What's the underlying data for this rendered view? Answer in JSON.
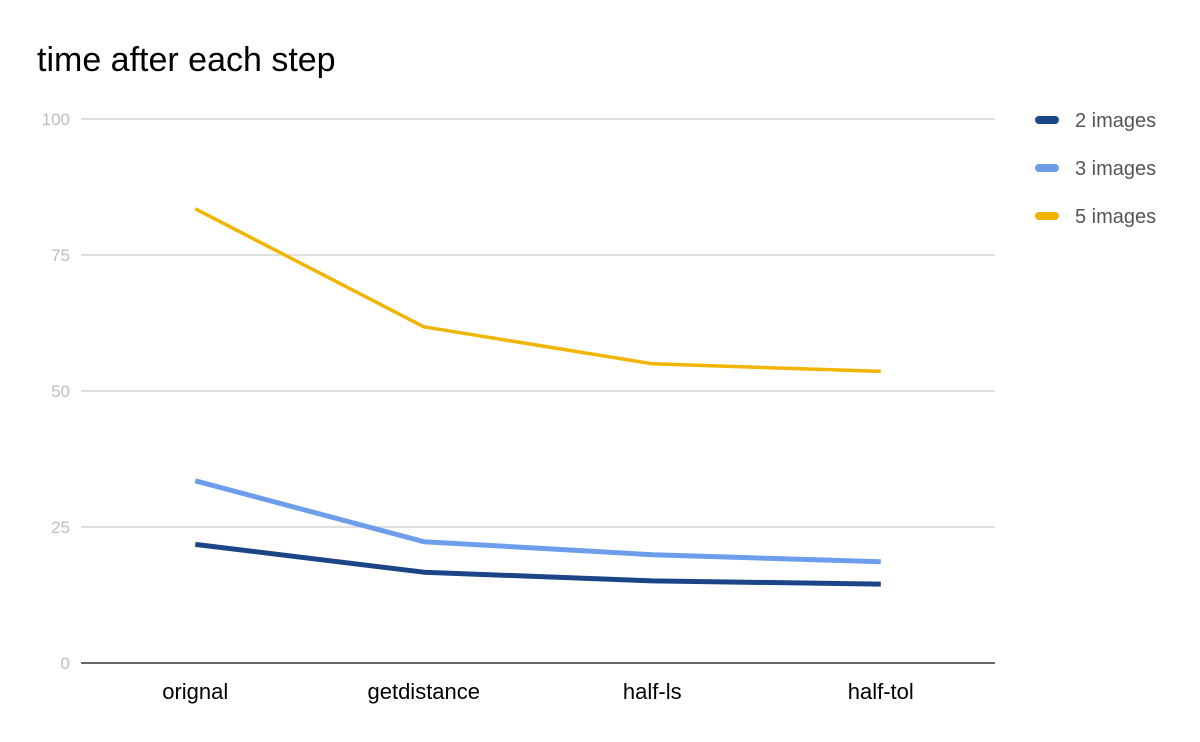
{
  "chart_data": {
    "type": "line",
    "title": "time after each step",
    "xlabel": "",
    "ylabel": "",
    "categories": [
      "orignal",
      "getdistance",
      "half-ls",
      "half-tol"
    ],
    "ylim": [
      0,
      100
    ],
    "yticks": [
      0,
      25,
      50,
      75,
      100
    ],
    "grid": true,
    "legend_position": "right",
    "series": [
      {
        "name": "2 images",
        "color": "#1c4587",
        "values": [
          21.8,
          16.7,
          15.1,
          14.5
        ]
      },
      {
        "name": "3 images",
        "color": "#6d9eeb",
        "values": [
          33.5,
          22.3,
          19.9,
          18.6
        ]
      },
      {
        "name": "5 images",
        "color": "#f1b400",
        "values": [
          83.5,
          61.8,
          55.0,
          53.6
        ]
      }
    ]
  }
}
